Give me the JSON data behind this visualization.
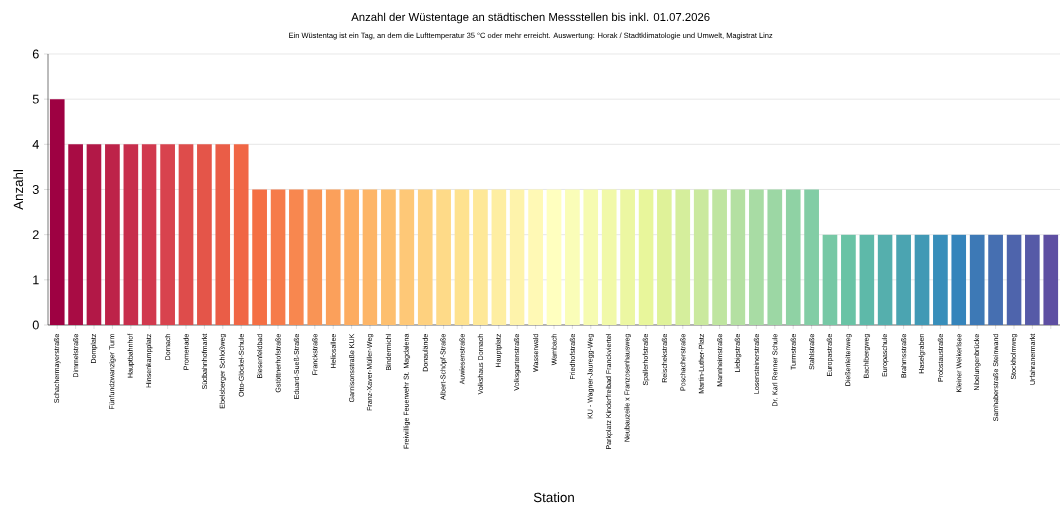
{
  "chart_data": {
    "type": "bar",
    "title": "Anzahl der Wüstentage an städtischen Messstellen bis inkl. 01.07.2026",
    "subtitle": "Ein Wüstentag ist ein Tag, an dem die Lufttemperatur 35 °C oder mehr erreicht. Auswertung: Horak / Stadtklimatologie und Umwelt, Magistrat Linz",
    "xlabel": "Station",
    "ylabel": "Anzahl",
    "categories": [
      "Schachermayerstraße",
      "Dimmelstraße",
      "Domplatz",
      "Fünfundzwanziger Turm",
      "Hauptbahnhof",
      "Hinsenkampplatz",
      "Dornach",
      "Promenade",
      "Südbahnhofmarkt",
      "Ebelsberger Schloßweg",
      "Otto-Glöckel-Schule",
      "Biesenfeldbad",
      "Gstöttnerhofstraße",
      "Eduard-Sueß-Straße",
      "Franckstraße",
      "Heliosallee",
      "Garnisonsstraße KUK",
      "Franz-Xaver-Müller-Weg",
      "Bindermichl",
      "Freiwillige Feuerwehr St. Magdalena",
      "Donaulände",
      "Albert-Schöpf-Straße",
      "Auwiesenstraße",
      "Volkshaus Dornach",
      "Hauptplatz",
      "Volksgartenstraße",
      "Wasserwald",
      "Wambach",
      "Friedhofstraße",
      "KU - Wagner-Jauregg-Weg",
      "Parkplatz Kinderfreibad Franckviertel",
      "Neubauzeile x Franzosenhausweg",
      "Spallerhofstraße",
      "Reischekstraße",
      "Poschacherstraße",
      "Martin-Luther-Platz",
      "Mannheimstraße",
      "Liebigstraße",
      "Losensteinerstraße",
      "Dr. Karl Renner Schule",
      "Turmstraße",
      "Stahlstraße",
      "Europastraße",
      "Dießenleitenweg",
      "Bachlbergweg",
      "Europaschule",
      "Brahmsstraße",
      "Haselgraben",
      "Probstaustraße",
      "Kleiner Weikerlsee",
      "Nibelungenbrücke",
      "Samhaberstraße Steinwand",
      "Stockholmweg",
      "Urfahranermarkt",
      null
    ],
    "values": [
      5,
      4,
      4,
      4,
      4,
      4,
      4,
      4,
      4,
      4,
      4,
      3,
      3,
      3,
      3,
      3,
      3,
      3,
      3,
      3,
      3,
      3,
      3,
      3,
      3,
      3,
      3,
      3,
      3,
      3,
      3,
      3,
      3,
      3,
      3,
      3,
      3,
      3,
      3,
      3,
      3,
      3,
      2,
      2,
      2,
      2,
      2,
      2,
      2,
      2,
      2,
      2,
      2,
      2,
      2
    ],
    "colors": [
      "#9e0142",
      "#a80c44",
      "#b21847",
      "#bd2349",
      "#c72e4c",
      "#d1394e",
      "#d8434e",
      "#de4c4b",
      "#e45549",
      "#ea5d47",
      "#f06645",
      "#f46f44",
      "#f67b4a",
      "#f8874f",
      "#f99455",
      "#fba05b",
      "#fdac60",
      "#fdb567",
      "#fdbf6f",
      "#fec877",
      "#fed17f",
      "#feda88",
      "#fee28f",
      "#fee898",
      "#feeea2",
      "#fef3ab",
      "#fff9b5",
      "#ffffbf",
      "#fafdb8",
      "#f6fbb1",
      "#f1f9a9",
      "#ecf7a2",
      "#e8f69b",
      "#dff299",
      "#d5ee9c",
      "#cae99e",
      "#bfe5a0",
      "#b4e0a2",
      "#a8dca4",
      "#9cd7a4",
      "#8fd2a4",
      "#82cda5",
      "#76c8a5",
      "#69c3a5",
      "#5eb9a9",
      "#55afad",
      "#4ba4b1",
      "#4199b5",
      "#388eba",
      "#3584bb",
      "#3d79b6",
      "#466fb1",
      "#4e64ac",
      "#565aa7",
      "#5e4fa2"
    ],
    "ylim": [
      0,
      6
    ],
    "yticks": [
      0,
      1,
      2,
      3,
      4,
      5,
      6
    ],
    "grid": "y"
  }
}
